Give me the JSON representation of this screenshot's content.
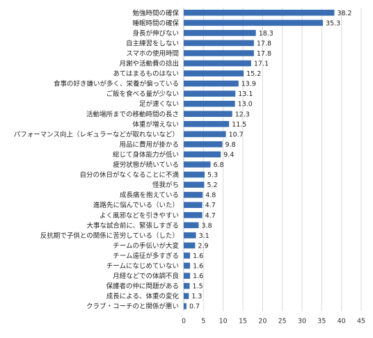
{
  "chart_data": {
    "type": "bar",
    "orientation": "horizontal",
    "categories": [
      "勉強時間の確保",
      "睡眠時間の確保",
      "身長が伸びない",
      "自主練習をしない",
      "スマホの使用時間",
      "月謝や活動費の捻出",
      "あてはまるものはない",
      "食事の好き嫌いが多く、栄養が偏っている",
      "ご飯を食べる量が少ない",
      "足が速くない",
      "活動場所までの移動時間の長さ",
      "体重が増えない",
      "パフォーマンス向上（レギュラーなどが取れないなど）",
      "用品に費用が掛かる",
      "総じて身体能力が低い",
      "疲労状態が続いている",
      "自分の休日がなくなることに不満",
      "怪我がち",
      "成長痛を抱えている",
      "進路先に悩んでいる（いた）",
      "よく風邪などを引きやすい",
      "大事な試合前に、緊張しすぎる",
      "反抗期で子供との関係に苦労している（した）",
      "チームの手伝いが大変",
      "チーム遠征が多すぎる",
      "チームになじめていない",
      "月経などでの体調不良",
      "保護者の仲に問題がある",
      "成長による、体重の変化",
      "クラブ・コーチのと関係が悪い"
    ],
    "values": [
      38.2,
      35.3,
      18.3,
      17.8,
      17.8,
      17.1,
      15.2,
      13.9,
      13.1,
      13.0,
      12.3,
      11.5,
      10.7,
      9.8,
      9.4,
      6.8,
      5.3,
      5.2,
      4.8,
      4.7,
      4.7,
      3.8,
      3.1,
      2.9,
      1.6,
      1.6,
      1.6,
      1.5,
      1.3,
      0.7
    ],
    "value_labels": [
      "38.2",
      "35.3",
      "18.3",
      "17.8",
      "17.8",
      "17.1",
      "15.2",
      "13.9",
      "13.1",
      "13.0",
      "12.3",
      "11.5",
      "10.7",
      "9.8",
      "9.4",
      "6.8",
      "5.3",
      "5.2",
      "4.8",
      "4.7",
      "4.7",
      "3.8",
      "3.1",
      "2.9",
      "1.6",
      "1.6",
      "1.6",
      "1.5",
      "1.3",
      "0.7"
    ],
    "x_ticks": [
      "0",
      "5",
      "10",
      "15",
      "20",
      "25",
      "30",
      "35",
      "40",
      "45"
    ],
    "xlim": [
      0,
      45
    ],
    "grid": true,
    "legend": "none",
    "colors": {
      "bar": "#3b6db3",
      "grid": "#d9d9d9",
      "text": "#222222"
    }
  }
}
